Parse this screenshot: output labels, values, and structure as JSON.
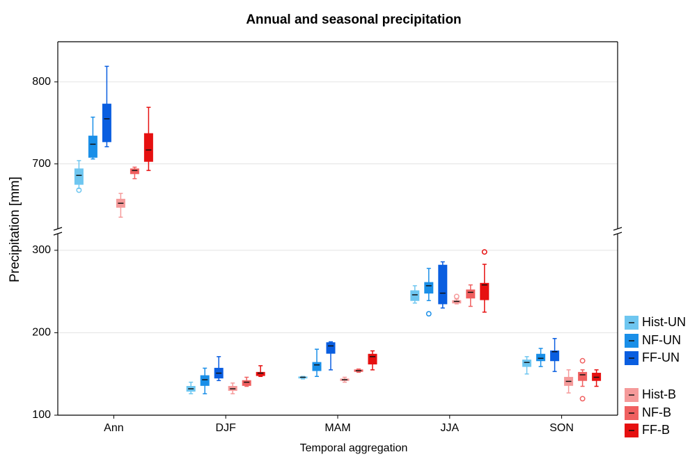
{
  "chart_data": {
    "type": "box",
    "title": "Annual and seasonal precipitation",
    "x_label": "Temporal aggregation",
    "y_label": "Precipitation [mm]",
    "categories": [
      "Ann",
      "DJF",
      "MAM",
      "JJA",
      "SON"
    ],
    "y_segments": [
      {
        "ylim": [
          100,
          321
        ],
        "yticks": [
          100,
          200,
          300
        ]
      },
      {
        "ylim": [
          620,
          849
        ],
        "yticks": [
          700,
          800
        ]
      }
    ],
    "grid": true,
    "series": [
      {
        "name": "Hist-UN",
        "color": "#6ec6f0",
        "boxes": [
          {
            "whisker_low": 670,
            "q1": 675,
            "median": 686,
            "q3": 694,
            "whisker_high": 704,
            "outliers": [
              668
            ]
          },
          {
            "whisker_low": 126,
            "q1": 129,
            "median": 132,
            "q3": 135,
            "whisker_high": 140
          },
          {
            "whisker_low": 144,
            "q1": 145,
            "median": 146,
            "q3": 146.5,
            "whisker_high": 147
          },
          {
            "whisker_low": 236,
            "q1": 239,
            "median": 246,
            "q3": 251,
            "whisker_high": 257
          },
          {
            "whisker_low": 150,
            "q1": 159,
            "median": 164,
            "q3": 167,
            "whisker_high": 171
          }
        ]
      },
      {
        "name": "NF-UN",
        "color": "#1a8fe8",
        "boxes": [
          {
            "whisker_low": 706,
            "q1": 708,
            "median": 724,
            "q3": 734,
            "whisker_high": 757
          },
          {
            "whisker_low": 126,
            "q1": 136,
            "median": 143,
            "q3": 148,
            "whisker_high": 157
          },
          {
            "whisker_low": 147,
            "q1": 154,
            "median": 161,
            "q3": 164,
            "whisker_high": 180
          },
          {
            "whisker_low": 239,
            "q1": 248,
            "median": 257,
            "q3": 261,
            "whisker_high": 278,
            "outliers": [
              223
            ]
          },
          {
            "whisker_low": 159,
            "q1": 166,
            "median": 169,
            "q3": 174,
            "whisker_high": 181
          }
        ]
      },
      {
        "name": "FF-UN",
        "color": "#0a5ee0",
        "boxes": [
          {
            "whisker_low": 721,
            "q1": 727,
            "median": 755,
            "q3": 773,
            "whisker_high": 819
          },
          {
            "whisker_low": 142,
            "q1": 145,
            "median": 151,
            "q3": 157,
            "whisker_high": 171
          },
          {
            "whisker_low": 155,
            "q1": 175,
            "median": 184,
            "q3": 188,
            "whisker_high": 189
          },
          {
            "whisker_low": 230,
            "q1": 235,
            "median": 248,
            "q3": 282,
            "whisker_high": 286
          },
          {
            "whisker_low": 153,
            "q1": 166,
            "median": 177,
            "q3": 178,
            "whisker_high": 193
          }
        ]
      },
      {
        "name": "Hist-B",
        "color": "#f59a9a",
        "boxes": [
          {
            "whisker_low": 635,
            "q1": 647,
            "median": 652,
            "q3": 657,
            "whisker_high": 664
          },
          {
            "whisker_low": 126,
            "q1": 130,
            "median": 132,
            "q3": 135,
            "whisker_high": 139
          },
          {
            "whisker_low": 140,
            "q1": 142,
            "median": 143,
            "q3": 144,
            "whisker_high": 146
          },
          {
            "whisker_low": 235,
            "q1": 236,
            "median": 238,
            "q3": 239,
            "whisker_high": 241,
            "outliers": [
              244
            ]
          },
          {
            "whisker_low": 127,
            "q1": 136,
            "median": 141,
            "q3": 146,
            "whisker_high": 155
          }
        ]
      },
      {
        "name": "NF-B",
        "color": "#f06060",
        "boxes": [
          {
            "whisker_low": 682,
            "q1": 688,
            "median": 692,
            "q3": 694,
            "whisker_high": 696
          },
          {
            "whisker_low": 135,
            "q1": 136,
            "median": 140,
            "q3": 142,
            "whisker_high": 146
          },
          {
            "whisker_low": 152,
            "q1": 153,
            "median": 154,
            "q3": 155,
            "whisker_high": 156
          },
          {
            "whisker_low": 232,
            "q1": 242,
            "median": 249,
            "q3": 252,
            "whisker_high": 258
          },
          {
            "whisker_low": 135,
            "q1": 142,
            "median": 149,
            "q3": 152,
            "whisker_high": 155,
            "outliers": [
              166,
              120
            ]
          }
        ]
      },
      {
        "name": "FF-B",
        "color": "#e61010",
        "boxes": [
          {
            "whisker_low": 692,
            "q1": 703,
            "median": 717,
            "q3": 737,
            "whisker_high": 769
          },
          {
            "whisker_low": 147,
            "q1": 148,
            "median": 151,
            "q3": 152,
            "whisker_high": 160
          },
          {
            "whisker_low": 155,
            "q1": 162,
            "median": 171,
            "q3": 174,
            "whisker_high": 178
          },
          {
            "whisker_low": 225,
            "q1": 240,
            "median": 258,
            "q3": 260,
            "whisker_high": 283,
            "outliers": [
              298
            ]
          },
          {
            "whisker_low": 135,
            "q1": 142,
            "median": 146,
            "q3": 151,
            "whisker_high": 155
          }
        ]
      }
    ]
  }
}
